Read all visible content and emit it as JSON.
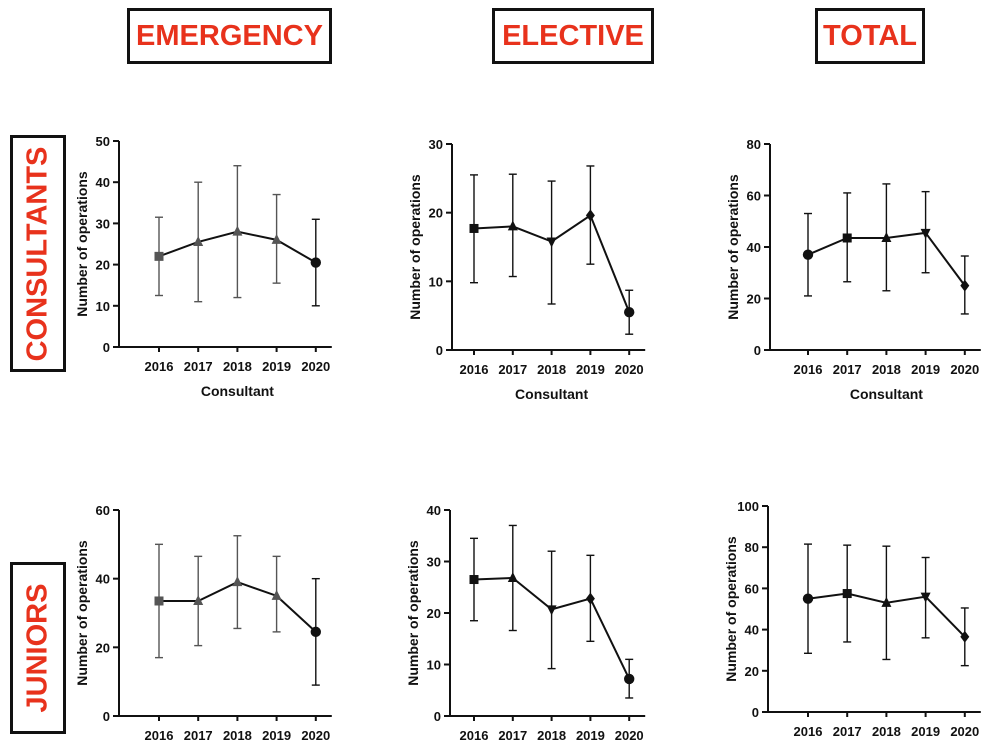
{
  "headers": {
    "columns": [
      "EMERGENCY",
      "ELECTIVE",
      "TOTAL"
    ],
    "rows": [
      "CONSULTANTS",
      "JUNIORS"
    ]
  },
  "style": {
    "text_color": "#e8321c",
    "line_color": "#111111"
  },
  "chart_data": [
    {
      "type": "line",
      "panel": "consultants-emergency",
      "categories": [
        "2016",
        "2017",
        "2018",
        "2019",
        "2020"
      ],
      "ylabel": "Number of operations",
      "xlabel": "Consultant",
      "ylim": [
        0,
        50
      ],
      "yticks": [
        0,
        10,
        20,
        30,
        40,
        50
      ],
      "series": [
        {
          "values": [
            22,
            25.5,
            28,
            26,
            20.5
          ],
          "err_low": [
            12.5,
            11,
            12,
            15.5,
            10
          ],
          "err_high": [
            31.5,
            40,
            44,
            37,
            31
          ],
          "markers": [
            "square",
            "triangle",
            "triangle",
            "triangle",
            "circle"
          ],
          "marker_colors": [
            "#555555",
            "#555555",
            "#555555",
            "#555555",
            "#111111"
          ]
        }
      ]
    },
    {
      "type": "line",
      "panel": "consultants-elective",
      "categories": [
        "2016",
        "2017",
        "2018",
        "2019",
        "2020"
      ],
      "ylabel": "Number of operations",
      "xlabel": "Consultant",
      "ylim": [
        0,
        30
      ],
      "yticks": [
        0,
        10,
        20,
        30
      ],
      "series": [
        {
          "values": [
            17.7,
            18,
            15.8,
            19.6,
            5.5
          ],
          "err_low": [
            9.8,
            10.7,
            6.7,
            12.5,
            2.3
          ],
          "err_high": [
            25.5,
            25.6,
            24.6,
            26.8,
            8.7
          ],
          "markers": [
            "square",
            "triangle",
            "triangle-down",
            "diamond",
            "circle"
          ],
          "marker_colors": [
            "#111111",
            "#111111",
            "#111111",
            "#111111",
            "#111111"
          ]
        }
      ]
    },
    {
      "type": "line",
      "panel": "consultants-total",
      "categories": [
        "2016",
        "2017",
        "2018",
        "2019",
        "2020"
      ],
      "ylabel": "Number of operations",
      "xlabel": "Consultant",
      "ylim": [
        0,
        80
      ],
      "yticks": [
        0,
        20,
        40,
        60,
        80
      ],
      "series": [
        {
          "values": [
            37,
            43.5,
            43.5,
            45.5,
            25
          ],
          "err_low": [
            21,
            26.5,
            23,
            30,
            14
          ],
          "err_high": [
            53,
            61,
            64.5,
            61.5,
            36.5
          ],
          "markers": [
            "circle",
            "square",
            "triangle",
            "triangle-down",
            "diamond"
          ],
          "marker_colors": [
            "#111111",
            "#111111",
            "#111111",
            "#111111",
            "#111111"
          ]
        }
      ]
    },
    {
      "type": "line",
      "panel": "juniors-emergency",
      "categories": [
        "2016",
        "2017",
        "2018",
        "2019",
        "2020"
      ],
      "ylabel": "Number of operations",
      "xlabel": "",
      "ylim": [
        0,
        60
      ],
      "yticks": [
        0,
        20,
        40,
        60
      ],
      "series": [
        {
          "values": [
            33.5,
            33.5,
            39,
            35,
            24.5
          ],
          "err_low": [
            17,
            20.5,
            25.5,
            24.5,
            9
          ],
          "err_high": [
            50,
            46.5,
            52.5,
            46.5,
            40
          ],
          "markers": [
            "square",
            "triangle",
            "triangle",
            "triangle",
            "circle"
          ],
          "marker_colors": [
            "#555555",
            "#555555",
            "#555555",
            "#555555",
            "#111111"
          ]
        }
      ]
    },
    {
      "type": "line",
      "panel": "juniors-elective",
      "categories": [
        "2016",
        "2017",
        "2018",
        "2019",
        "2020"
      ],
      "ylabel": "Number of operations",
      "xlabel": "",
      "ylim": [
        0,
        40
      ],
      "yticks": [
        0,
        10,
        20,
        30,
        40
      ],
      "series": [
        {
          "values": [
            26.5,
            26.8,
            20.7,
            22.8,
            7.2
          ],
          "err_low": [
            18.5,
            16.6,
            9.2,
            14.5,
            3.5
          ],
          "err_high": [
            34.5,
            37,
            32,
            31.2,
            11
          ],
          "markers": [
            "square",
            "triangle",
            "triangle-down",
            "diamond",
            "circle"
          ],
          "marker_colors": [
            "#111111",
            "#111111",
            "#111111",
            "#111111",
            "#111111"
          ]
        }
      ]
    },
    {
      "type": "line",
      "panel": "juniors-total",
      "categories": [
        "2016",
        "2017",
        "2018",
        "2019",
        "2020"
      ],
      "ylabel": "Number of operations",
      "xlabel": "",
      "ylim": [
        0,
        100
      ],
      "yticks": [
        0,
        20,
        40,
        60,
        80,
        100
      ],
      "series": [
        {
          "values": [
            55,
            57.5,
            53,
            56,
            36.5
          ],
          "err_low": [
            28.5,
            34,
            25.5,
            36,
            22.5
          ],
          "err_high": [
            81.5,
            81,
            80.5,
            75,
            50.5
          ],
          "markers": [
            "circle",
            "square",
            "triangle",
            "triangle-down",
            "diamond"
          ],
          "marker_colors": [
            "#111111",
            "#111111",
            "#111111",
            "#111111",
            "#111111"
          ]
        }
      ]
    }
  ]
}
